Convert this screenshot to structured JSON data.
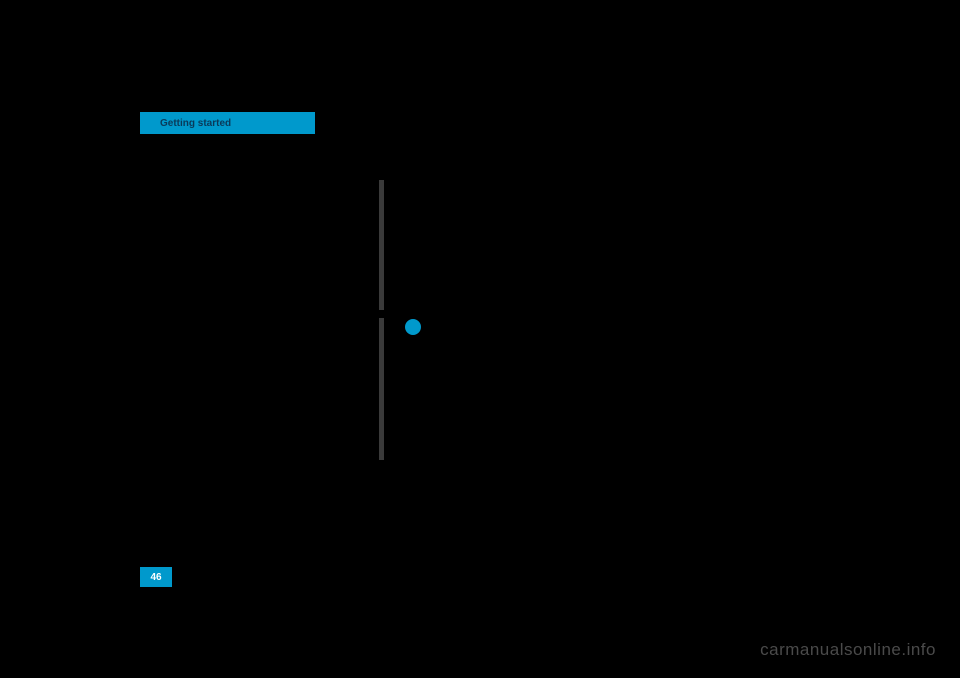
{
  "colors": {
    "background": "#000000",
    "accent": "#0099cc",
    "tab_text": "#0a3a5a",
    "page_num_text": "#ffffff",
    "divider": "#3a3a3a",
    "watermark": "#4a4a4a"
  },
  "tab": {
    "label": "Getting started"
  },
  "page_number": "46",
  "watermark": "carmanualsonline.info"
}
